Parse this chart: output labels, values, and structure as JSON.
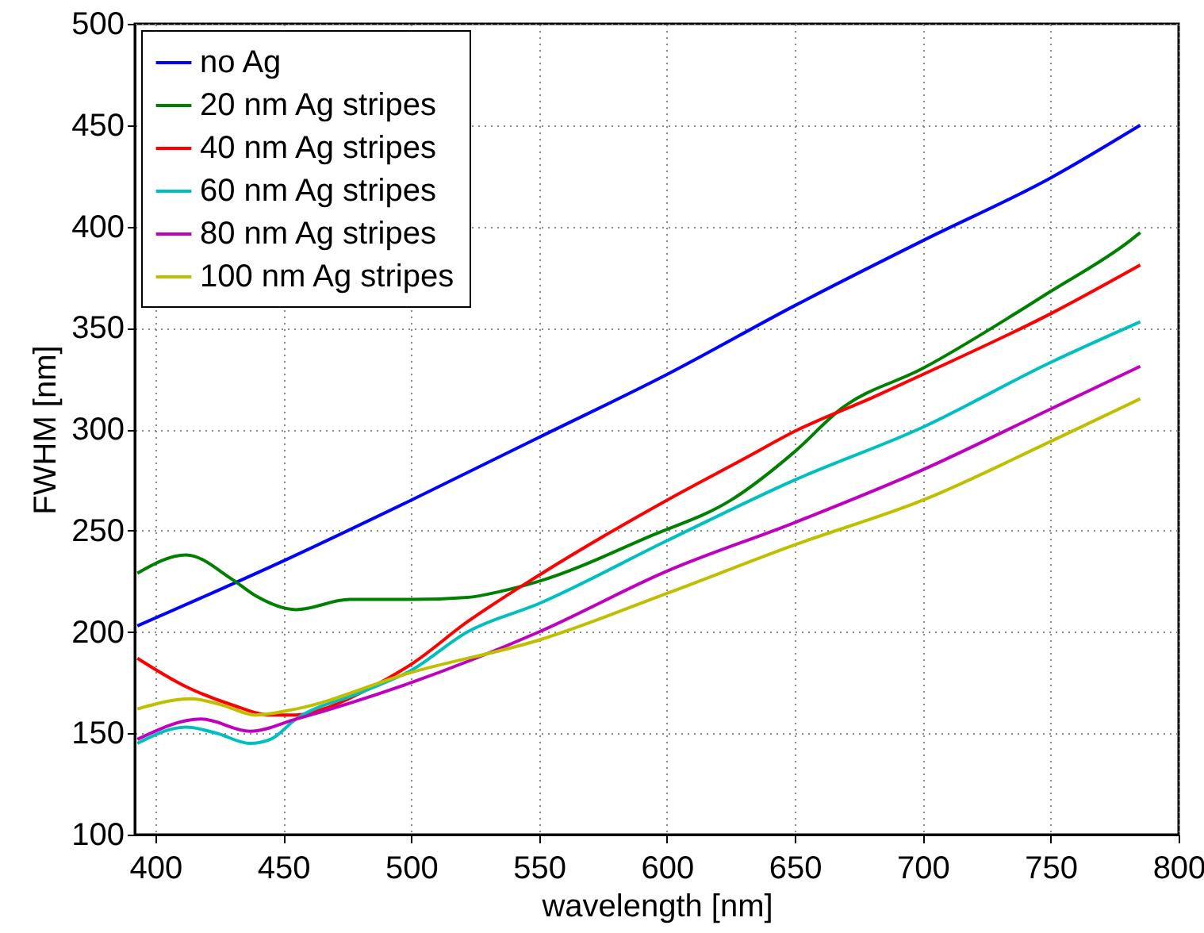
{
  "chart_data": {
    "type": "line",
    "xlabel": "wavelength [nm]",
    "ylabel": "FWHM [nm]",
    "xlim": [
      392,
      800
    ],
    "ylim": [
      100,
      500
    ],
    "xticks": [
      400,
      450,
      500,
      550,
      600,
      650,
      700,
      750,
      800
    ],
    "yticks": [
      100,
      150,
      200,
      250,
      300,
      350,
      400,
      450,
      500
    ],
    "grid": true,
    "legend": "top left",
    "series": [
      {
        "name": "no Ag",
        "color": "#0000ff",
        "x": [
          393,
          450,
          500,
          550,
          600,
          650,
          700,
          750,
          785
        ],
        "values": [
          203,
          235,
          265,
          296,
          327,
          361,
          393,
          424,
          450
        ]
      },
      {
        "name": "20 nm Ag stripes",
        "color": "#008000",
        "x": [
          393,
          412,
          430,
          439,
          455,
          476,
          500,
          522,
          535,
          550,
          593,
          625,
          650,
          668,
          700,
          750,
          781,
          785
        ],
        "values": [
          229,
          238,
          226,
          218,
          211,
          216,
          216,
          217,
          220,
          225,
          247,
          265,
          289,
          310,
          330,
          368,
          393,
          397
        ]
      },
      {
        "name": "40 nm Ag stripes",
        "color": "#ff0000",
        "x": [
          393,
          412,
          430,
          445,
          455,
          468,
          485,
          500,
          522,
          550,
          600,
          631,
          650,
          681,
          700,
          750,
          785
        ],
        "values": [
          187,
          173,
          164,
          159,
          159,
          163,
          173,
          184,
          205,
          228,
          265,
          286,
          299,
          316,
          327,
          357,
          381
        ]
      },
      {
        "name": "60 nm Ag stripes",
        "color": "#00bfbf",
        "x": [
          393,
          412,
          424,
          437,
          445,
          455,
          480,
          500,
          522,
          550,
          600,
          650,
          700,
          750,
          785
        ],
        "values": [
          145,
          153,
          150,
          145,
          147,
          157,
          170,
          181,
          200,
          214,
          245,
          275,
          301,
          333,
          353
        ]
      },
      {
        "name": "80  nm Ag stripes",
        "color": "#bf00bf",
        "x": [
          393,
          418,
          437,
          455,
          500,
          550,
          600,
          650,
          700,
          750,
          785
        ],
        "values": [
          147,
          157,
          151,
          157,
          175,
          200,
          230,
          254,
          280,
          310,
          331
        ]
      },
      {
        "name": "100 nm Ag stripes",
        "color": "#bfbf00",
        "x": [
          393,
          414,
          426,
          439,
          455,
          500,
          550,
          600,
          650,
          700,
          750,
          785
        ],
        "values": [
          162,
          167,
          164,
          159,
          162,
          180,
          196,
          219,
          243,
          265,
          294,
          315
        ]
      }
    ]
  }
}
